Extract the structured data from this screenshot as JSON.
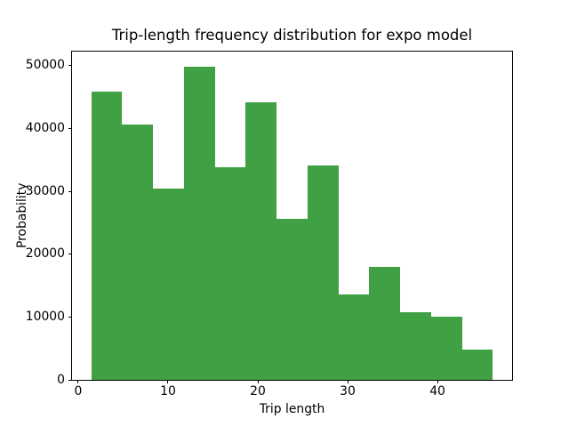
{
  "chart_data": {
    "type": "bar",
    "subtype": "histogram",
    "title": "Trip-length frequency distribution for expo model",
    "xlabel": "Trip length",
    "ylabel": "Probability",
    "bin_edges": [
      1.45,
      4.89,
      8.33,
      11.77,
      15.21,
      18.65,
      22.09,
      25.53,
      28.97,
      32.41,
      35.85,
      39.29,
      42.73,
      46.17
    ],
    "values": [
      45850,
      40650,
      30500,
      49850,
      33800,
      44100,
      25700,
      34050,
      13650,
      18050,
      10850,
      10100,
      4900
    ],
    "xlim": [
      -0.79,
      48.41
    ],
    "ylim": [
      0,
      52340
    ],
    "xticks": [
      0,
      10,
      20,
      30,
      40
    ],
    "yticks": [
      0,
      10000,
      20000,
      30000,
      40000,
      50000
    ],
    "xtick_labels": [
      "0",
      "10",
      "20",
      "30",
      "40"
    ],
    "ytick_labels": [
      "0",
      "10000",
      "20000",
      "30000",
      "40000",
      "50000"
    ],
    "grid": false,
    "legend": "none",
    "bar_color": "#3fa044",
    "axis_color": "#000000",
    "background_color": "#ffffff"
  }
}
